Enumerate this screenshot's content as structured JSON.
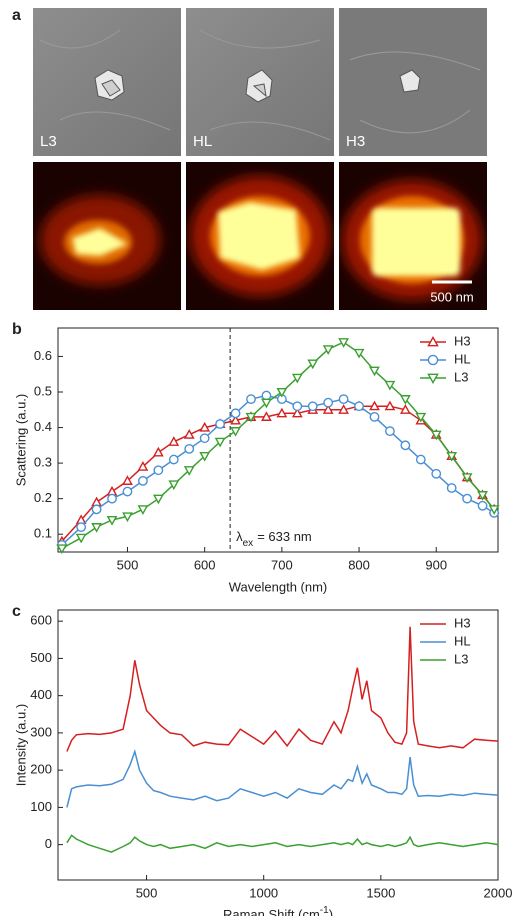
{
  "panel_a": {
    "panel_label": "a",
    "images": [
      "L3",
      "HL",
      "H3"
    ],
    "scale_bar": "500 nm"
  },
  "chart_data": [
    {
      "type": "line",
      "panel_label": "b",
      "xlabel": "Wavelength (nm)",
      "ylabel": "Scattering (a.u.)",
      "xlim": [
        410,
        980
      ],
      "ylim": [
        0.05,
        0.68
      ],
      "xticks": [
        500,
        600,
        700,
        800,
        900
      ],
      "yticks": [
        0.1,
        0.2,
        0.3,
        0.4,
        0.5,
        0.6
      ],
      "legend": "upper right",
      "annotation": {
        "x": 633,
        "label": [
          {
            "text": "λ"
          },
          {
            "text": "ex",
            "sub": true
          },
          {
            "text": "= 633 nm"
          }
        ]
      },
      "x": [
        415,
        440,
        460,
        480,
        500,
        520,
        540,
        560,
        580,
        600,
        620,
        640,
        660,
        680,
        700,
        720,
        740,
        760,
        780,
        800,
        820,
        840,
        860,
        880,
        900,
        920,
        940,
        960,
        975
      ],
      "series": [
        {
          "name": "H3",
          "color": "#d42020",
          "marker": "triangle-up",
          "values": [
            0.08,
            0.14,
            0.19,
            0.22,
            0.25,
            0.29,
            0.33,
            0.36,
            0.38,
            0.4,
            0.41,
            0.42,
            0.43,
            0.43,
            0.44,
            0.44,
            0.45,
            0.45,
            0.45,
            0.46,
            0.46,
            0.46,
            0.45,
            0.42,
            0.38,
            0.32,
            0.26,
            0.21,
            0.17
          ]
        },
        {
          "name": "HL",
          "color": "#4a8fd4",
          "marker": "circle",
          "values": [
            0.07,
            0.12,
            0.17,
            0.2,
            0.22,
            0.25,
            0.28,
            0.31,
            0.34,
            0.37,
            0.41,
            0.44,
            0.48,
            0.49,
            0.48,
            0.46,
            0.46,
            0.47,
            0.48,
            0.46,
            0.43,
            0.39,
            0.35,
            0.31,
            0.27,
            0.23,
            0.2,
            0.18,
            0.16
          ]
        },
        {
          "name": "L3",
          "color": "#3aa030",
          "marker": "triangle-down",
          "values": [
            0.06,
            0.09,
            0.12,
            0.14,
            0.15,
            0.17,
            0.2,
            0.24,
            0.28,
            0.32,
            0.36,
            0.39,
            0.43,
            0.47,
            0.5,
            0.54,
            0.58,
            0.62,
            0.64,
            0.61,
            0.56,
            0.52,
            0.48,
            0.43,
            0.38,
            0.32,
            0.26,
            0.21,
            0.17
          ]
        }
      ]
    },
    {
      "type": "line",
      "panel_label": "c",
      "xlabel": [
        {
          "text": "Raman Shift (cm"
        },
        {
          "text": "-1",
          "sup": true
        },
        {
          "text": ")"
        }
      ],
      "ylabel": "Intensity (a.u.)",
      "xlim": [
        122,
        2000
      ],
      "ylim": [
        -95,
        630
      ],
      "xticks": [
        500,
        1000,
        1500,
        2000
      ],
      "yticks": [
        0,
        100,
        200,
        300,
        400,
        500,
        600
      ],
      "legend": "upper right",
      "x": [
        160,
        180,
        200,
        250,
        300,
        350,
        400,
        430,
        450,
        470,
        500,
        530,
        560,
        600,
        650,
        700,
        750,
        800,
        850,
        900,
        950,
        1000,
        1050,
        1100,
        1150,
        1200,
        1250,
        1300,
        1330,
        1360,
        1380,
        1400,
        1420,
        1440,
        1460,
        1500,
        1530,
        1560,
        1590,
        1610,
        1625,
        1640,
        1660,
        1700,
        1750,
        1800,
        1850,
        1900,
        1950,
        2000
      ],
      "series": [
        {
          "name": "H3",
          "color": "#d42020",
          "values": [
            250,
            280,
            295,
            298,
            296,
            300,
            310,
            400,
            495,
            430,
            360,
            340,
            320,
            300,
            295,
            265,
            275,
            270,
            268,
            310,
            290,
            270,
            305,
            265,
            310,
            280,
            270,
            330,
            300,
            360,
            420,
            475,
            390,
            440,
            360,
            340,
            300,
            275,
            270,
            300,
            585,
            330,
            270,
            265,
            260,
            265,
            260,
            283,
            280,
            278
          ]
        },
        {
          "name": "HL",
          "color": "#4a8fd4",
          "values": [
            100,
            150,
            155,
            160,
            158,
            162,
            175,
            215,
            250,
            200,
            165,
            145,
            140,
            130,
            125,
            120,
            130,
            118,
            125,
            150,
            140,
            130,
            140,
            125,
            150,
            140,
            135,
            160,
            150,
            175,
            170,
            210,
            165,
            190,
            160,
            150,
            140,
            140,
            135,
            150,
            235,
            160,
            130,
            132,
            130,
            135,
            132,
            138,
            135,
            133
          ]
        },
        {
          "name": "L3",
          "color": "#3aa030",
          "values": [
            5,
            25,
            15,
            0,
            -10,
            -20,
            -5,
            5,
            20,
            10,
            0,
            -5,
            0,
            -10,
            -5,
            0,
            -10,
            5,
            -5,
            0,
            -5,
            0,
            5,
            -5,
            0,
            -5,
            0,
            5,
            0,
            5,
            0,
            15,
            0,
            5,
            0,
            -5,
            0,
            -5,
            0,
            5,
            20,
            0,
            -5,
            0,
            5,
            0,
            -5,
            0,
            5,
            0
          ]
        }
      ]
    }
  ]
}
